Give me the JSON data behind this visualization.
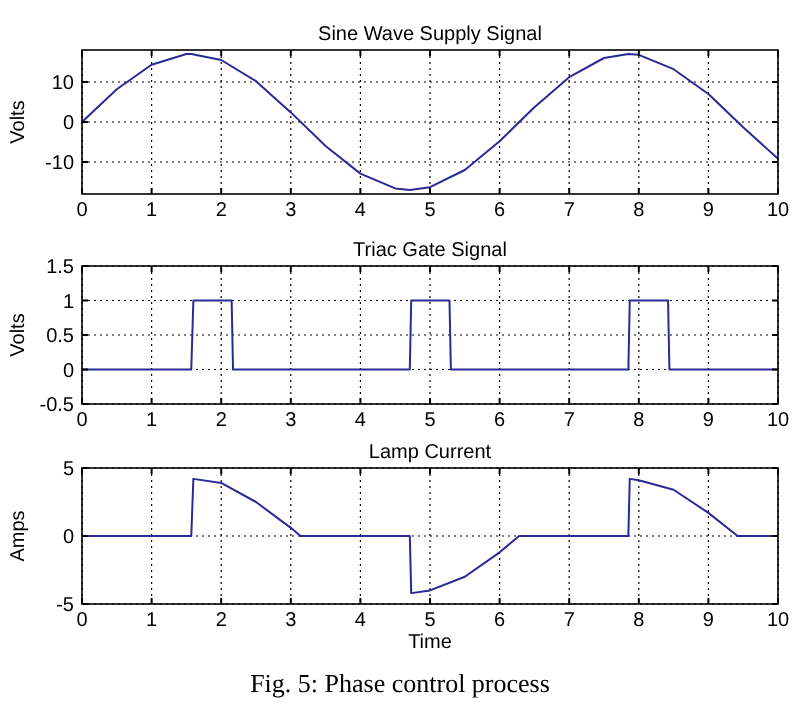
{
  "chart_data": [
    {
      "type": "line",
      "title": "Sine Wave Supply Signal",
      "ylabel": "Volts",
      "xlim": [
        0,
        10
      ],
      "xticks": [
        0,
        1,
        2,
        3,
        4,
        5,
        6,
        7,
        8,
        9,
        10
      ],
      "ylim": [
        -18,
        18
      ],
      "yticks": [
        -10,
        0,
        10
      ],
      "grid": true,
      "series": [
        {
          "color": "#2a2a96",
          "x": [
            0,
            0.5,
            1,
            1.5,
            1.57,
            2,
            2.5,
            3,
            3.5,
            4,
            4.5,
            4.71,
            5,
            5.5,
            6,
            6.5,
            7,
            7.5,
            7.85,
            8,
            8.5,
            9,
            9.5,
            10
          ],
          "values": [
            0,
            8.2,
            14.3,
            17,
            17,
            15.5,
            10.2,
            2.4,
            -6,
            -12.9,
            -16.6,
            -17,
            -16.3,
            -12,
            -4.8,
            3.7,
            11.2,
            16,
            17,
            16.8,
            13.2,
            7,
            -1.3,
            -9.2
          ]
        }
      ]
    },
    {
      "type": "line",
      "title": "Triac Gate Signal",
      "ylabel": "Volts",
      "xlim": [
        0,
        10
      ],
      "xticks": [
        0,
        1,
        2,
        3,
        4,
        5,
        6,
        7,
        8,
        9,
        10
      ],
      "ylim": [
        -0.5,
        1.5
      ],
      "yticks": [
        -0.5,
        0,
        0.5,
        1,
        1.5
      ],
      "grid": true,
      "series": [
        {
          "color": "#2a2a96",
          "x": [
            0,
            1.57,
            1.6,
            2.15,
            2.17,
            4.71,
            4.73,
            5.28,
            5.3,
            7.85,
            7.87,
            8.42,
            8.44,
            10
          ],
          "values": [
            0,
            0,
            1,
            1,
            0,
            0,
            1,
            1,
            0,
            0,
            1,
            1,
            0,
            0
          ]
        }
      ]
    },
    {
      "type": "line",
      "title": "Lamp Current",
      "ylabel": "Amps",
      "xlabel": "Time",
      "xlim": [
        0,
        10
      ],
      "xticks": [
        0,
        1,
        2,
        3,
        4,
        5,
        6,
        7,
        8,
        9,
        10
      ],
      "ylim": [
        -5,
        5
      ],
      "yticks": [
        -5,
        0,
        5
      ],
      "grid": true,
      "annotations": [
        "Fig. 5: Phase control process"
      ],
      "series": [
        {
          "color": "#2a2a96",
          "x": [
            0,
            1.57,
            1.6,
            2,
            2.5,
            3,
            3.14,
            4.71,
            4.73,
            5,
            5.5,
            6,
            6.28,
            7.85,
            7.87,
            8,
            8.5,
            9,
            9.42,
            10
          ],
          "values": [
            0,
            0,
            4.2,
            3.9,
            2.5,
            0.6,
            0,
            0,
            -4.2,
            -4,
            -3,
            -1.2,
            0,
            0,
            4.2,
            4.1,
            3.4,
            1.7,
            0,
            0
          ]
        }
      ]
    }
  ]
}
